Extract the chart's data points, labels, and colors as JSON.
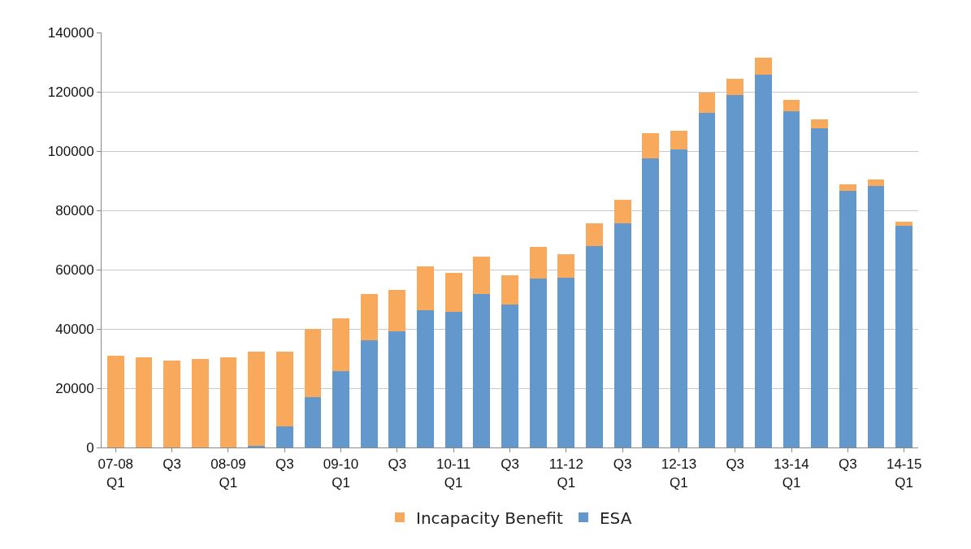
{
  "chart_data": {
    "type": "bar",
    "stacked": true,
    "categories": [
      "07-08\nQ1",
      null,
      "Q3",
      null,
      "08-09\nQ1",
      null,
      "Q3",
      null,
      "09-10\nQ1",
      null,
      "Q3",
      null,
      "10-11\nQ1",
      null,
      "Q3",
      null,
      "11-12\nQ1",
      null,
      "Q3",
      null,
      "12-13\nQ1",
      null,
      "Q3",
      null,
      "13-14\nQ1",
      null,
      "Q3",
      null,
      "14-15\nQ1"
    ],
    "series": [
      {
        "name": "ESA",
        "color": "#6398cc",
        "values": [
          0,
          0,
          0,
          0,
          0,
          500,
          7000,
          17000,
          25800,
          36300,
          39300,
          46300,
          45800,
          51700,
          48200,
          57000,
          57200,
          68000,
          75500,
          97500,
          100500,
          113000,
          119000,
          125700,
          113500,
          107800,
          86700,
          88300,
          74700
        ]
      },
      {
        "name": "Incapacity Benefit",
        "color": "#f9a95b",
        "values": [
          31000,
          30500,
          29200,
          29800,
          30500,
          31700,
          25300,
          23000,
          17900,
          15500,
          13900,
          14700,
          13200,
          12600,
          10000,
          10800,
          8100,
          7700,
          8000,
          8500,
          6300,
          6700,
          5500,
          5800,
          3800,
          2900,
          2000,
          2000,
          1500
        ]
      }
    ],
    "ylim": [
      0,
      140000
    ],
    "yticks": [
      0,
      20000,
      40000,
      60000,
      80000,
      100000,
      120000,
      140000
    ],
    "grid": "y",
    "legend": "bottom"
  }
}
